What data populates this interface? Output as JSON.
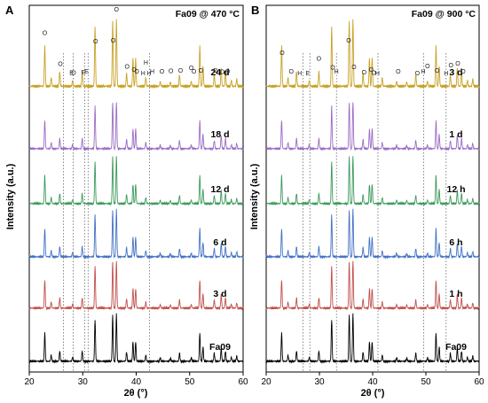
{
  "figure": {
    "panels": [
      {
        "letter": "A",
        "title": "Fa09 @ 470 °C",
        "ylabel": "Intensity (a.u.)",
        "xlabel": "2θ (°)",
        "xticks": [
          "20",
          "30",
          "40",
          "50",
          "60"
        ],
        "series_labels": [
          "Fa09",
          "3 d",
          "6 d",
          "12 d",
          "18 d",
          "24 d"
        ],
        "phase_marks": {
          "O": [
            22.9,
            25.8,
            28.3,
            32.4,
            35.7,
            36.3,
            38.3,
            39.6,
            40.1,
            44.8,
            46.5,
            48.3,
            50.3,
            50.8,
            52.1,
            54.8,
            56.1,
            57.1
          ],
          "E": [
            30.1,
            30.7,
            27.9
          ],
          "H": [
            41.3,
            41.8,
            42.4,
            43.0
          ]
        }
      },
      {
        "letter": "B",
        "title": "Fa09 @ 900 °C",
        "ylabel": "Intensity (a.u.)",
        "xlabel": "2θ (°)",
        "xticks": [
          "20",
          "30",
          "40",
          "50",
          "60"
        ],
        "series_labels": [
          "Fa09",
          "1 h",
          "6 h",
          "12 h",
          "1 d",
          "3 d"
        ],
        "phase_marks": {
          "O": [
            23.0,
            24.7,
            29.9,
            32.5,
            35.5,
            36.5,
            38.4,
            39.7,
            40.2,
            44.8,
            48.4,
            50.3,
            52.1,
            54.7,
            56.0,
            57.0
          ],
          "E": [
            27.8
          ],
          "H": [
            26.3,
            33.2,
            40.9,
            49.5,
            53.8
          ]
        }
      }
    ]
  },
  "chart_data": [
    {
      "type": "line",
      "panel": "A",
      "title": "Fa09 @ 470 °C",
      "xlabel": "2θ (°)",
      "ylabel": "Intensity (a.u.)",
      "xlim": [
        20,
        60
      ],
      "reference_lines_x": [
        26.4,
        28.2,
        30.4,
        31.0,
        42.5
      ],
      "series": [
        {
          "name": "Fa09",
          "color": "#000000"
        },
        {
          "name": "3 d",
          "color": "#c0504d"
        },
        {
          "name": "6 d",
          "color": "#4472c4"
        },
        {
          "name": "12 d",
          "color": "#3d9b5d"
        },
        {
          "name": "18 d",
          "color": "#9b6dc6"
        },
        {
          "name": "24 d",
          "color": "#c9a227"
        }
      ],
      "peaks": [
        {
          "x": 22.9,
          "h": 0.55
        },
        {
          "x": 24.1,
          "h": 0.12
        },
        {
          "x": 25.7,
          "h": 0.2
        },
        {
          "x": 28.1,
          "h": 0.08
        },
        {
          "x": 29.9,
          "h": 0.2
        },
        {
          "x": 32.3,
          "h": 0.82
        },
        {
          "x": 35.6,
          "h": 0.9
        },
        {
          "x": 36.3,
          "h": 0.92
        },
        {
          "x": 38.2,
          "h": 0.18
        },
        {
          "x": 39.4,
          "h": 0.38
        },
        {
          "x": 39.9,
          "h": 0.38
        },
        {
          "x": 41.8,
          "h": 0.12
        },
        {
          "x": 44.5,
          "h": 0.07
        },
        {
          "x": 46.4,
          "h": 0.06
        },
        {
          "x": 48.1,
          "h": 0.16
        },
        {
          "x": 50.3,
          "h": 0.07
        },
        {
          "x": 51.9,
          "h": 0.55
        },
        {
          "x": 52.5,
          "h": 0.28
        },
        {
          "x": 54.6,
          "h": 0.16
        },
        {
          "x": 55.9,
          "h": 0.26
        },
        {
          "x": 56.7,
          "h": 0.2
        },
        {
          "x": 57.8,
          "h": 0.08
        },
        {
          "x": 58.8,
          "h": 0.1
        }
      ]
    },
    {
      "type": "line",
      "panel": "B",
      "title": "Fa09 @ 900 °C",
      "xlabel": "2θ (°)",
      "ylabel": "Intensity (a.u.)",
      "xlim": [
        20,
        60
      ],
      "reference_lines_x": [
        26.9,
        28.2,
        33.2,
        41.0,
        49.6,
        53.8
      ],
      "series": [
        {
          "name": "Fa09",
          "color": "#000000"
        },
        {
          "name": "1 h",
          "color": "#c0504d"
        },
        {
          "name": "6 h",
          "color": "#4472c4"
        },
        {
          "name": "12 h",
          "color": "#3d9b5d"
        },
        {
          "name": "1 d",
          "color": "#9b6dc6"
        },
        {
          "name": "3 d",
          "color": "#c9a227"
        }
      ],
      "peaks": [
        {
          "x": 22.9,
          "h": 0.55
        },
        {
          "x": 24.1,
          "h": 0.12
        },
        {
          "x": 25.7,
          "h": 0.2
        },
        {
          "x": 28.1,
          "h": 0.08
        },
        {
          "x": 29.9,
          "h": 0.2
        },
        {
          "x": 32.3,
          "h": 0.82
        },
        {
          "x": 35.6,
          "h": 0.9
        },
        {
          "x": 36.3,
          "h": 0.92
        },
        {
          "x": 38.2,
          "h": 0.18
        },
        {
          "x": 39.4,
          "h": 0.38
        },
        {
          "x": 39.9,
          "h": 0.38
        },
        {
          "x": 41.8,
          "h": 0.12
        },
        {
          "x": 44.5,
          "h": 0.07
        },
        {
          "x": 46.4,
          "h": 0.06
        },
        {
          "x": 48.1,
          "h": 0.16
        },
        {
          "x": 50.3,
          "h": 0.07
        },
        {
          "x": 51.9,
          "h": 0.55
        },
        {
          "x": 52.5,
          "h": 0.28
        },
        {
          "x": 54.6,
          "h": 0.16
        },
        {
          "x": 55.9,
          "h": 0.26
        },
        {
          "x": 56.7,
          "h": 0.2
        },
        {
          "x": 57.8,
          "h": 0.08
        },
        {
          "x": 58.8,
          "h": 0.1
        }
      ]
    }
  ]
}
